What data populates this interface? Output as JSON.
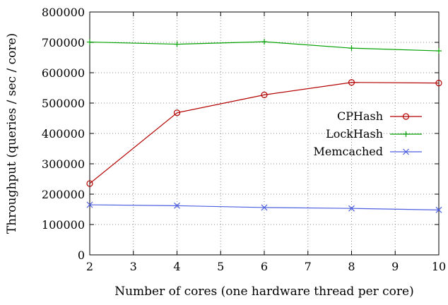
{
  "chart_data": {
    "type": "line",
    "xlabel": "Number of cores (one hardware thread per core)",
    "ylabel": "Throughput (queries / sec / core)",
    "xlim": [
      2,
      10
    ],
    "ylim": [
      0,
      800000
    ],
    "xticks": [
      2,
      3,
      4,
      5,
      6,
      7,
      8,
      9,
      10
    ],
    "yticks": [
      0,
      100000,
      200000,
      300000,
      400000,
      500000,
      600000,
      700000,
      800000
    ],
    "grid": true,
    "legend_position": "right",
    "series": [
      {
        "name": "CPHash",
        "color": "#b30000",
        "marker": "circle",
        "x": [
          2,
          4,
          6,
          8,
          10
        ],
        "y": [
          235000,
          468000,
          527000,
          568000,
          566000
        ]
      },
      {
        "name": "LockHash",
        "color": "#00a000",
        "marker": "plus",
        "x": [
          2,
          4,
          6,
          8,
          10
        ],
        "y": [
          701000,
          694000,
          702000,
          681000,
          672000
        ]
      },
      {
        "name": "Memcached",
        "color": "#4d5fe0",
        "marker": "x",
        "x": [
          2,
          4,
          6,
          8,
          10
        ],
        "y": [
          165000,
          162000,
          156000,
          153000,
          148000
        ]
      }
    ]
  }
}
